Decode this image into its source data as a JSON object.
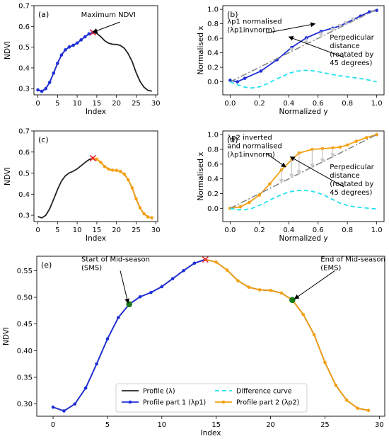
{
  "chart_data": [
    {
      "id": "a",
      "panel_label": "(a)",
      "type": "line",
      "xlabel": "Index",
      "ylabel": "NDVI",
      "xlim": [
        -1,
        30.5
      ],
      "ylim": [
        0.27,
        0.7
      ],
      "xticks": [
        0,
        5,
        10,
        15,
        20,
        25,
        30
      ],
      "yticks": [
        0.3,
        0.4,
        0.5,
        0.6,
        0.7
      ],
      "ytick_decimals": 1,
      "series": [
        {
          "role": "profile",
          "color": "#222222",
          "marker": "none",
          "x": [
            0,
            1,
            2,
            3,
            4,
            5,
            6,
            7,
            8,
            9,
            10,
            11,
            12,
            13,
            14,
            15,
            16,
            17,
            18,
            19,
            20,
            21,
            22,
            23,
            24,
            25,
            26,
            27,
            28,
            29
          ],
          "y": [
            0.294,
            0.287,
            0.3,
            0.33,
            0.375,
            0.422,
            0.462,
            0.487,
            0.501,
            0.509,
            0.52,
            0.535,
            0.55,
            0.564,
            0.571,
            0.566,
            0.551,
            0.531,
            0.519,
            0.514,
            0.513,
            0.508,
            0.495,
            0.468,
            0.43,
            0.378,
            0.335,
            0.307,
            0.292,
            0.288
          ]
        },
        {
          "role": "part1",
          "color": "#1f2fd8",
          "marker": "dot",
          "x": [
            0,
            1,
            2,
            3,
            4,
            5,
            6,
            7,
            8,
            9,
            10,
            11,
            12,
            13,
            14
          ],
          "y": [
            0.294,
            0.287,
            0.3,
            0.33,
            0.375,
            0.422,
            0.462,
            0.487,
            0.501,
            0.509,
            0.52,
            0.535,
            0.55,
            0.564,
            0.571
          ]
        }
      ],
      "max_marker": {
        "x": 14,
        "y": 0.571,
        "color": "#e8243a"
      },
      "annotations": [
        {
          "text": "Maximum NDVI",
          "x": 11,
          "y": 0.645,
          "target": [
            14,
            0.572
          ]
        }
      ]
    },
    {
      "id": "b",
      "panel_label": "(b)",
      "type": "line",
      "xlabel": "Normalized y",
      "ylabel": "Normalised x",
      "xlim": [
        -0.05,
        1.05
      ],
      "ylim": [
        -0.18,
        1.05
      ],
      "xticks": [
        0.0,
        0.2,
        0.4,
        0.6,
        0.8,
        1.0
      ],
      "yticks": [
        0.0,
        0.2,
        0.4,
        0.6,
        0.8,
        1.0
      ],
      "ytick_decimals": 1,
      "series": [
        {
          "role": "part1",
          "color": "#1f2fd8",
          "marker": "dot",
          "x": [
            0.0,
            0.05,
            0.1,
            0.21,
            0.32,
            0.42,
            0.52,
            0.62,
            0.7,
            0.75,
            0.79,
            0.84,
            0.89,
            0.95,
            1.0
          ],
          "y": [
            0.021,
            0.0,
            0.048,
            0.148,
            0.304,
            0.474,
            0.606,
            0.695,
            0.74,
            0.771,
            0.81,
            0.858,
            0.907,
            0.964,
            0.985
          ]
        },
        {
          "role": "diagonal",
          "color": "#888888",
          "dash": "9,3,2,3",
          "x": [
            0,
            1
          ],
          "y": [
            0,
            1
          ]
        },
        {
          "role": "difference",
          "color": "#22e0f0",
          "dash": "6,4",
          "x": [
            0,
            0.05,
            0.1,
            0.15,
            0.2,
            0.25,
            0.3,
            0.35,
            0.4,
            0.45,
            0.5,
            0.55,
            0.6,
            0.65,
            0.7,
            0.75,
            0.8,
            0.85,
            0.9,
            0.95,
            1.0
          ],
          "y": [
            0.0,
            -0.04,
            -0.075,
            -0.085,
            -0.07,
            -0.03,
            0.02,
            0.07,
            0.115,
            0.145,
            0.158,
            0.155,
            0.14,
            0.12,
            0.1,
            0.082,
            0.068,
            0.056,
            0.042,
            0.022,
            0.0
          ]
        }
      ],
      "perpendiculars": [
        [
          0.52,
          0.606
        ],
        [
          0.62,
          0.695
        ],
        [
          0.7,
          0.74
        ],
        [
          0.75,
          0.771
        ],
        [
          0.79,
          0.81
        ],
        [
          0.84,
          0.858
        ],
        [
          0.42,
          0.474
        ]
      ],
      "annotations": [
        {
          "text": "λp1 normalised\n(λp1invnorm)",
          "x": -0.02,
          "y": 0.8,
          "target": [
            0.58,
            0.8
          ]
        },
        {
          "text": "Perpedicular\ndistance\n(roatated by\n45 degrees)",
          "x": 0.68,
          "y": 0.58,
          "target": [
            0.4,
            0.62
          ]
        }
      ]
    },
    {
      "id": "c",
      "panel_label": "(c)",
      "type": "line",
      "xlabel": "Index",
      "ylabel": "NDVI",
      "xlim": [
        -1,
        30.5
      ],
      "ylim": [
        0.27,
        0.7
      ],
      "xticks": [
        0,
        5,
        10,
        15,
        20,
        25,
        30
      ],
      "yticks": [
        0.3,
        0.4,
        0.5,
        0.6,
        0.7
      ],
      "ytick_decimals": 1,
      "series": [
        {
          "role": "profile",
          "color": "#222222",
          "marker": "none",
          "x": [
            0,
            1,
            2,
            3,
            4,
            5,
            6,
            7,
            8,
            9,
            10,
            11,
            12,
            13,
            14,
            15,
            16,
            17,
            18,
            19,
            20,
            21,
            22,
            23,
            24,
            25,
            26,
            27,
            28,
            29
          ],
          "y": [
            0.294,
            0.287,
            0.3,
            0.33,
            0.375,
            0.422,
            0.462,
            0.487,
            0.501,
            0.509,
            0.52,
            0.535,
            0.55,
            0.564,
            0.571,
            0.566,
            0.551,
            0.531,
            0.519,
            0.514,
            0.513,
            0.508,
            0.495,
            0.468,
            0.43,
            0.378,
            0.335,
            0.307,
            0.292,
            0.288
          ]
        },
        {
          "role": "part2",
          "color": "#f5a012",
          "marker": "dot",
          "x": [
            14,
            15,
            16,
            17,
            18,
            19,
            20,
            21,
            22,
            23,
            24,
            25,
            26,
            27,
            28,
            29
          ],
          "y": [
            0.571,
            0.566,
            0.551,
            0.531,
            0.519,
            0.514,
            0.513,
            0.508,
            0.495,
            0.468,
            0.43,
            0.378,
            0.335,
            0.307,
            0.292,
            0.288
          ]
        }
      ],
      "max_marker": {
        "x": 14,
        "y": 0.571,
        "color": "#e8243a"
      },
      "annotations": []
    },
    {
      "id": "d",
      "panel_label": "(d)",
      "type": "line",
      "xlabel": "Normalized y",
      "ylabel": "Normalised x",
      "xlim": [
        -0.05,
        1.05
      ],
      "ylim": [
        -0.18,
        1.05
      ],
      "xticks": [
        0.0,
        0.2,
        0.4,
        0.6,
        0.8,
        1.0
      ],
      "yticks": [
        0.0,
        0.2,
        0.4,
        0.6,
        0.8,
        1.0
      ],
      "ytick_decimals": 1,
      "series": [
        {
          "role": "part2",
          "color": "#f5a012",
          "marker": "dot",
          "x": [
            0.0,
            0.07,
            0.13,
            0.2,
            0.27,
            0.35,
            0.42,
            0.47,
            0.56,
            0.63,
            0.7,
            0.75,
            0.8,
            0.86,
            0.93,
            1.0
          ],
          "y": [
            0.0,
            0.02,
            0.08,
            0.18,
            0.33,
            0.52,
            0.66,
            0.75,
            0.8,
            0.81,
            0.82,
            0.83,
            0.86,
            0.91,
            0.96,
            1.0
          ]
        },
        {
          "role": "diagonal",
          "color": "#888888",
          "dash": "9,3,2,3",
          "x": [
            0,
            1
          ],
          "y": [
            0,
            1
          ]
        },
        {
          "role": "difference",
          "color": "#22e0f0",
          "dash": "6,4",
          "x": [
            0,
            0.05,
            0.1,
            0.15,
            0.2,
            0.25,
            0.3,
            0.35,
            0.4,
            0.45,
            0.5,
            0.55,
            0.6,
            0.65,
            0.7,
            0.75,
            0.8,
            0.85,
            0.9,
            0.95,
            1.0
          ],
          "y": [
            0.0,
            -0.02,
            -0.02,
            0.0,
            0.04,
            0.09,
            0.14,
            0.185,
            0.22,
            0.24,
            0.245,
            0.235,
            0.21,
            0.17,
            0.12,
            0.07,
            0.04,
            0.02,
            0.01,
            0.0,
            -0.01
          ]
        }
      ],
      "perpendiculars": [
        [
          0.35,
          0.52
        ],
        [
          0.42,
          0.66
        ],
        [
          0.47,
          0.75
        ],
        [
          0.56,
          0.8
        ],
        [
          0.63,
          0.81
        ],
        [
          0.7,
          0.82
        ]
      ],
      "annotations": [
        {
          "text": "λp2 inverted\nand normalised\n(λp1invnorm)",
          "x": -0.02,
          "y": 0.93,
          "target": [
            0.38,
            0.56
          ]
        },
        {
          "text": "Perpedicular\ndistance\n(roatated by\n45 degrees)",
          "x": 0.68,
          "y": 0.53,
          "target": [
            0.41,
            0.7
          ]
        }
      ]
    },
    {
      "id": "e",
      "panel_label": "(e)",
      "type": "line",
      "xlabel": "Index",
      "ylabel": "NDVI",
      "xlim": [
        -1.5,
        30.5
      ],
      "ylim": [
        0.277,
        0.577
      ],
      "xticks": [
        0,
        5,
        10,
        15,
        20,
        25,
        30
      ],
      "yticks": [
        0.3,
        0.35,
        0.4,
        0.45,
        0.5,
        0.55
      ],
      "ytick_decimals": 2,
      "series": [
        {
          "role": "profile",
          "color": "#222222",
          "marker": "none",
          "name": "Profile (λ)",
          "x": [
            0,
            1,
            2,
            3,
            4,
            5,
            6,
            7,
            8,
            9,
            10,
            11,
            12,
            13,
            14,
            15,
            16,
            17,
            18,
            19,
            20,
            21,
            22,
            23,
            24,
            25,
            26,
            27,
            28,
            29
          ],
          "y": [
            0.294,
            0.287,
            0.3,
            0.33,
            0.375,
            0.422,
            0.462,
            0.487,
            0.501,
            0.509,
            0.52,
            0.535,
            0.55,
            0.564,
            0.571,
            0.566,
            0.551,
            0.531,
            0.519,
            0.514,
            0.513,
            0.508,
            0.495,
            0.468,
            0.43,
            0.378,
            0.335,
            0.307,
            0.292,
            0.288
          ]
        },
        {
          "role": "part1",
          "color": "#1f2fd8",
          "marker": "dot",
          "name": "Profile part 1 (λp1)",
          "x": [
            0,
            1,
            2,
            3,
            4,
            5,
            6,
            7,
            8,
            9,
            10,
            11,
            12,
            13,
            14
          ],
          "y": [
            0.294,
            0.287,
            0.3,
            0.33,
            0.375,
            0.422,
            0.462,
            0.487,
            0.501,
            0.509,
            0.52,
            0.535,
            0.55,
            0.564,
            0.571
          ]
        },
        {
          "role": "part2",
          "color": "#f5a012",
          "marker": "dot",
          "name": "Profile part 2 (λp2)",
          "x": [
            14,
            15,
            16,
            17,
            18,
            19,
            20,
            21,
            22,
            23,
            24,
            25,
            26,
            27,
            28,
            29
          ],
          "y": [
            0.571,
            0.566,
            0.551,
            0.531,
            0.519,
            0.514,
            0.513,
            0.508,
            0.495,
            0.468,
            0.43,
            0.378,
            0.335,
            0.307,
            0.292,
            0.288
          ]
        }
      ],
      "legend": {
        "placement": "lower-center",
        "entries": [
          {
            "label": "Profile (λ)",
            "color": "#222222",
            "style": "line"
          },
          {
            "label": "Difference curve",
            "color": "#22e0f0",
            "style": "dashed"
          },
          {
            "label": "Profile part 1 (λp1)",
            "color": "#1f2fd8",
            "style": "line-dot"
          },
          {
            "label": "Profile part 2 (λp2)",
            "color": "#f5a012",
            "style": "line-dot"
          }
        ]
      },
      "max_marker": {
        "x": 14,
        "y": 0.571,
        "color": "#e8243a"
      },
      "key_points": [
        {
          "x": 7,
          "y": 0.487,
          "color": "#1a7a1a"
        },
        {
          "x": 22,
          "y": 0.495,
          "color": "#1a7a1a"
        }
      ],
      "annotations": [
        {
          "text": "Start of Mid-season\n(SMS)",
          "x": 2.6,
          "y": 0.567,
          "target": [
            6.9,
            0.489
          ]
        },
        {
          "text": "End of Mid-season\n(EMS)",
          "x": 24.6,
          "y": 0.567,
          "target": [
            22.2,
            0.497
          ]
        }
      ]
    }
  ]
}
